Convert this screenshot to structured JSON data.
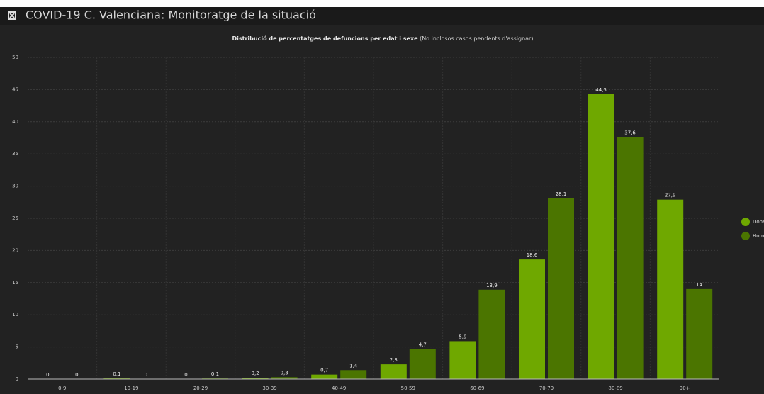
{
  "header": {
    "title": "COVID-19 C. Valenciana: Monitoratge de la situació"
  },
  "chart_data": {
    "type": "bar",
    "title": "Distribució de percentatges de defuncions per edat i sexe",
    "subtitle": "(No inclosos casos pendents d'assignar)",
    "categories": [
      "0-9",
      "10-19",
      "20-29",
      "30-39",
      "40-49",
      "50-59",
      "60-69",
      "70-79",
      "80-89",
      "90+"
    ],
    "series": [
      {
        "name": "Dones",
        "color": "#6fa800",
        "values": [
          0,
          0.1,
          0,
          0.2,
          0.7,
          2.3,
          5.9,
          18.6,
          44.3,
          27.9
        ],
        "value_labels": [
          "0",
          "0,1",
          "0",
          "0,2",
          "0,7",
          "2,3",
          "5,9",
          "18,6",
          "44,3",
          "27,9"
        ]
      },
      {
        "name": "Homes",
        "color": "#4b7500",
        "values": [
          0,
          0,
          0.1,
          0.3,
          1.4,
          4.7,
          13.9,
          28.1,
          37.6,
          14
        ],
        "value_labels": [
          "0",
          "0",
          "0,1",
          "0,3",
          "1,4",
          "4,7",
          "13,9",
          "28,1",
          "37,6",
          "14"
        ]
      }
    ],
    "ylim": [
      0,
      50
    ],
    "yticks": [
      0,
      5,
      10,
      15,
      20,
      25,
      30,
      35,
      40,
      45,
      50
    ],
    "grid": true,
    "legend": "right"
  }
}
